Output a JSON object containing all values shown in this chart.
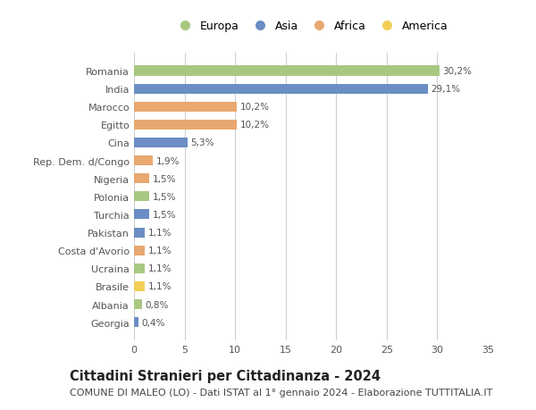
{
  "countries": [
    "Romania",
    "India",
    "Marocco",
    "Egitto",
    "Cina",
    "Rep. Dem. d/Congo",
    "Nigeria",
    "Polonia",
    "Turchia",
    "Pakistan",
    "Costa d'Avorio",
    "Ucraina",
    "Brasile",
    "Albania",
    "Georgia"
  ],
  "values": [
    30.2,
    29.1,
    10.2,
    10.2,
    5.3,
    1.9,
    1.5,
    1.5,
    1.5,
    1.1,
    1.1,
    1.1,
    1.1,
    0.8,
    0.4
  ],
  "labels": [
    "30,2%",
    "29,1%",
    "10,2%",
    "10,2%",
    "5,3%",
    "1,9%",
    "1,5%",
    "1,5%",
    "1,5%",
    "1,1%",
    "1,1%",
    "1,1%",
    "1,1%",
    "0,8%",
    "0,4%"
  ],
  "continents": [
    "Europa",
    "Asia",
    "Africa",
    "Africa",
    "Asia",
    "Africa",
    "Africa",
    "Europa",
    "Asia",
    "Asia",
    "Africa",
    "Europa",
    "America",
    "Europa",
    "Asia"
  ],
  "continent_colors": {
    "Europa": "#a8c882",
    "Asia": "#6b8ec4",
    "Africa": "#e8a870",
    "America": "#f2cf58"
  },
  "legend_order": [
    "Europa",
    "Asia",
    "Africa",
    "America"
  ],
  "title": "Cittadini Stranieri per Cittadinanza - 2024",
  "subtitle": "COMUNE DI MALEO (LO) - Dati ISTAT al 1° gennaio 2024 - Elaborazione TUTTITALIA.IT",
  "xlim": [
    0,
    35
  ],
  "xticks": [
    0,
    5,
    10,
    15,
    20,
    25,
    30,
    35
  ],
  "background_color": "#ffffff",
  "grid_color": "#cccccc",
  "bar_height": 0.55,
  "title_fontsize": 10.5,
  "subtitle_fontsize": 8,
  "label_fontsize": 7.5,
  "tick_fontsize": 8,
  "legend_fontsize": 9
}
